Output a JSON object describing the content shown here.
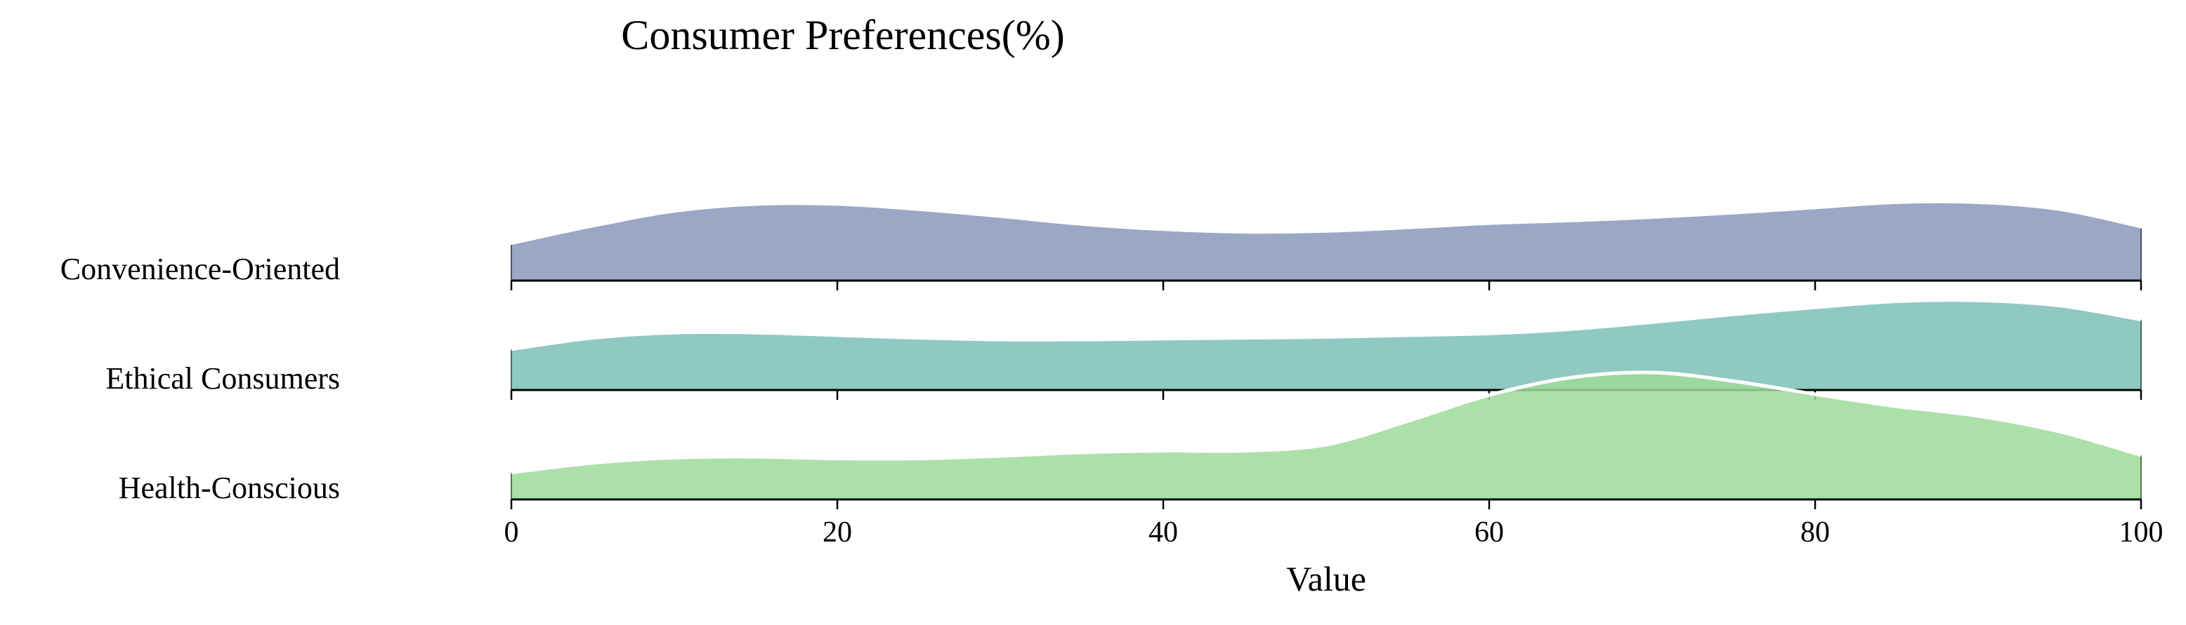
{
  "chart_data": {
    "type": "area",
    "subtype": "ridgeline",
    "title": "Consumer Preferences(%)",
    "xlabel": "Value",
    "ylabel": "",
    "xlim": [
      0,
      100
    ],
    "xticks": [
      0,
      20,
      40,
      60,
      80,
      100
    ],
    "x": [
      0,
      5,
      10,
      15,
      20,
      25,
      30,
      35,
      40,
      45,
      50,
      55,
      60,
      65,
      70,
      75,
      80,
      85,
      90,
      95,
      100
    ],
    "series": [
      {
        "name": "Convenience-Oriented",
        "color": "#8a98bb",
        "values": [
          0.41,
          0.61,
          0.78,
          0.86,
          0.86,
          0.8,
          0.72,
          0.63,
          0.57,
          0.54,
          0.55,
          0.59,
          0.64,
          0.67,
          0.71,
          0.76,
          0.82,
          0.88,
          0.88,
          0.8,
          0.6
        ]
      },
      {
        "name": "Ethical Consumers",
        "color": "#7bbfb6",
        "values": [
          0.47,
          0.6,
          0.66,
          0.66,
          0.63,
          0.6,
          0.58,
          0.58,
          0.59,
          0.6,
          0.61,
          0.63,
          0.65,
          0.7,
          0.78,
          0.87,
          0.95,
          1.02,
          1.03,
          0.97,
          0.81
        ]
      },
      {
        "name": "Health-Conscious",
        "color": "#9edb9a",
        "values": [
          0.31,
          0.42,
          0.48,
          0.49,
          0.47,
          0.47,
          0.5,
          0.54,
          0.56,
          0.56,
          0.63,
          0.9,
          1.2,
          1.4,
          1.46,
          1.36,
          1.21,
          1.07,
          0.96,
          0.78,
          0.51
        ]
      }
    ]
  }
}
